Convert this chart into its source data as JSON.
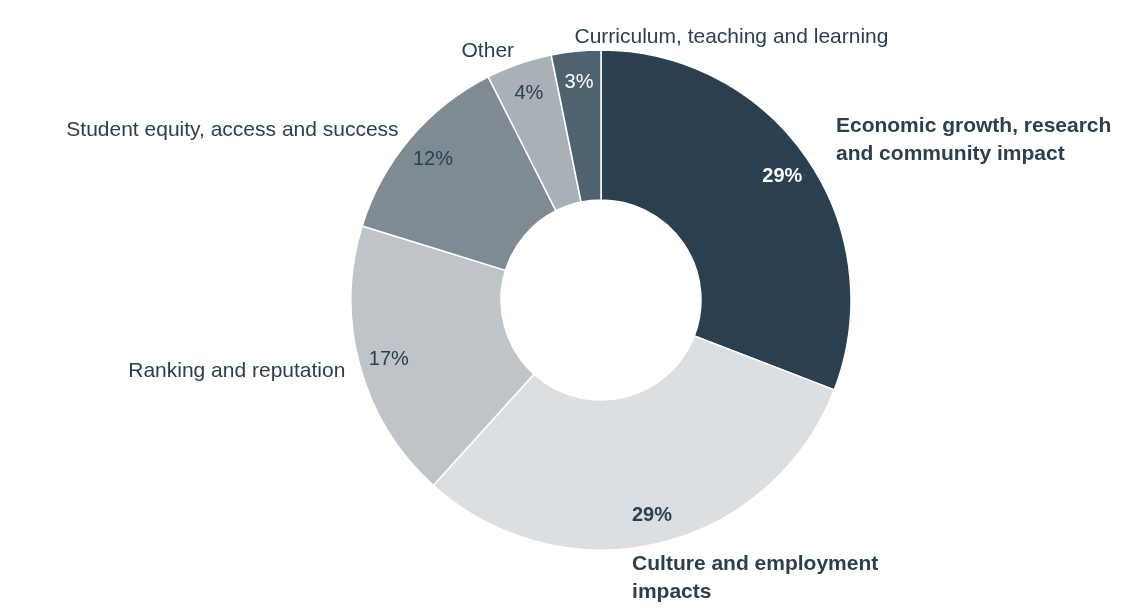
{
  "chart_data": {
    "type": "donut",
    "categories": [
      "Economic growth, research and community impact",
      "Culture and employment impacts",
      "Ranking and reputation",
      "Student equity, access and success",
      "Other",
      "Curriculum, teaching and learning"
    ],
    "values": [
      29,
      29,
      17,
      12,
      4,
      3
    ],
    "value_labels": [
      "29%",
      "29%",
      "17%",
      "12%",
      "4%",
      "3%"
    ],
    "colors": [
      "#2a3f4f",
      "#dcdfe2",
      "#bec4c7",
      "#7f8b93",
      "#a9b0b6",
      "#4f6270"
    ]
  }
}
